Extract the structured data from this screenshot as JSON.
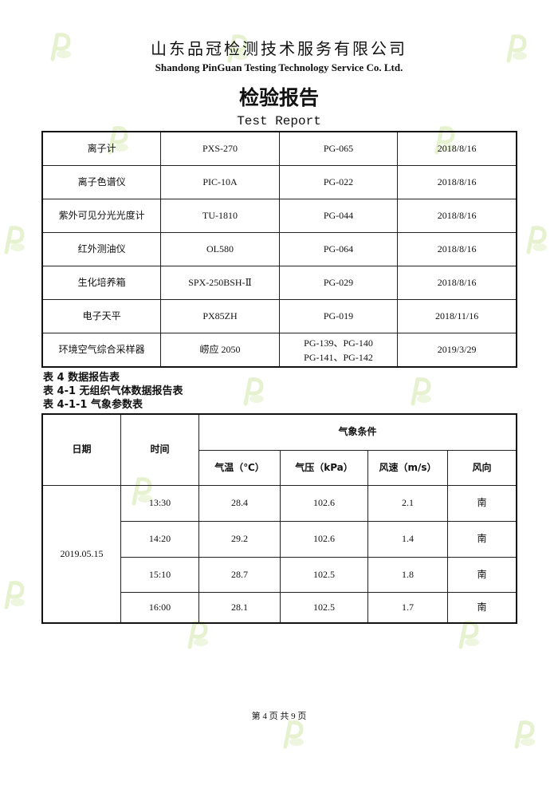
{
  "header": {
    "company_cn": "山东品冠检测技术服务有限公司",
    "company_en": "Shandong PinGuan Testing Technology Service Co. Ltd.",
    "title_cn": "检验报告",
    "title_en": "Test Report"
  },
  "equipment": [
    {
      "name": "离子计",
      "model": "PXS-270",
      "id": "PG-065",
      "date": "2018/8/16"
    },
    {
      "name": "离子色谱仪",
      "model": "PIC-10A",
      "id": "PG-022",
      "date": "2018/8/16"
    },
    {
      "name": "紫外可见分光光度计",
      "model": "TU-1810",
      "id": "PG-044",
      "date": "2018/8/16"
    },
    {
      "name": "红外测油仪",
      "model": "OL580",
      "id": "PG-064",
      "date": "2018/8/16"
    },
    {
      "name": "生化培养箱",
      "model": "SPX-250BSH-Ⅱ",
      "id": "PG-029",
      "date": "2018/8/16"
    },
    {
      "name": "电子天平",
      "model": "PX85ZH",
      "id": "PG-019",
      "date": "2018/11/16"
    },
    {
      "name": "环境空气综合采样器",
      "model": "崂应 2050",
      "id": "PG-139、PG-140",
      "id2": "PG-141、PG-142",
      "date": "2019/3/29"
    }
  ],
  "captions": [
    "表 4 数据报告表",
    "表 4-1 无组织气体数据报告表",
    "表 4-1-1 气象参数表"
  ],
  "weather": {
    "headers": {
      "date": "日期",
      "time": "时间",
      "group": "气象条件",
      "temp": "气温（℃）",
      "pressure": "气压（kPa）",
      "wind_speed": "风速（m/s）",
      "wind_dir": "风向"
    },
    "date": "2019.05.15",
    "rows": [
      {
        "time": "13:30",
        "temp": "28.4",
        "pressure": "102.6",
        "wind_speed": "2.1",
        "wind_dir": "南"
      },
      {
        "time": "14:20",
        "temp": "29.2",
        "pressure": "102.6",
        "wind_speed": "1.4",
        "wind_dir": "南"
      },
      {
        "time": "15:10",
        "temp": "28.7",
        "pressure": "102.5",
        "wind_speed": "1.8",
        "wind_dir": "南"
      },
      {
        "time": "16:00",
        "temp": "28.1",
        "pressure": "102.5",
        "wind_speed": "1.7",
        "wind_dir": "南"
      }
    ]
  },
  "footer": "第 4 页 共 9 页",
  "watermark": "P"
}
